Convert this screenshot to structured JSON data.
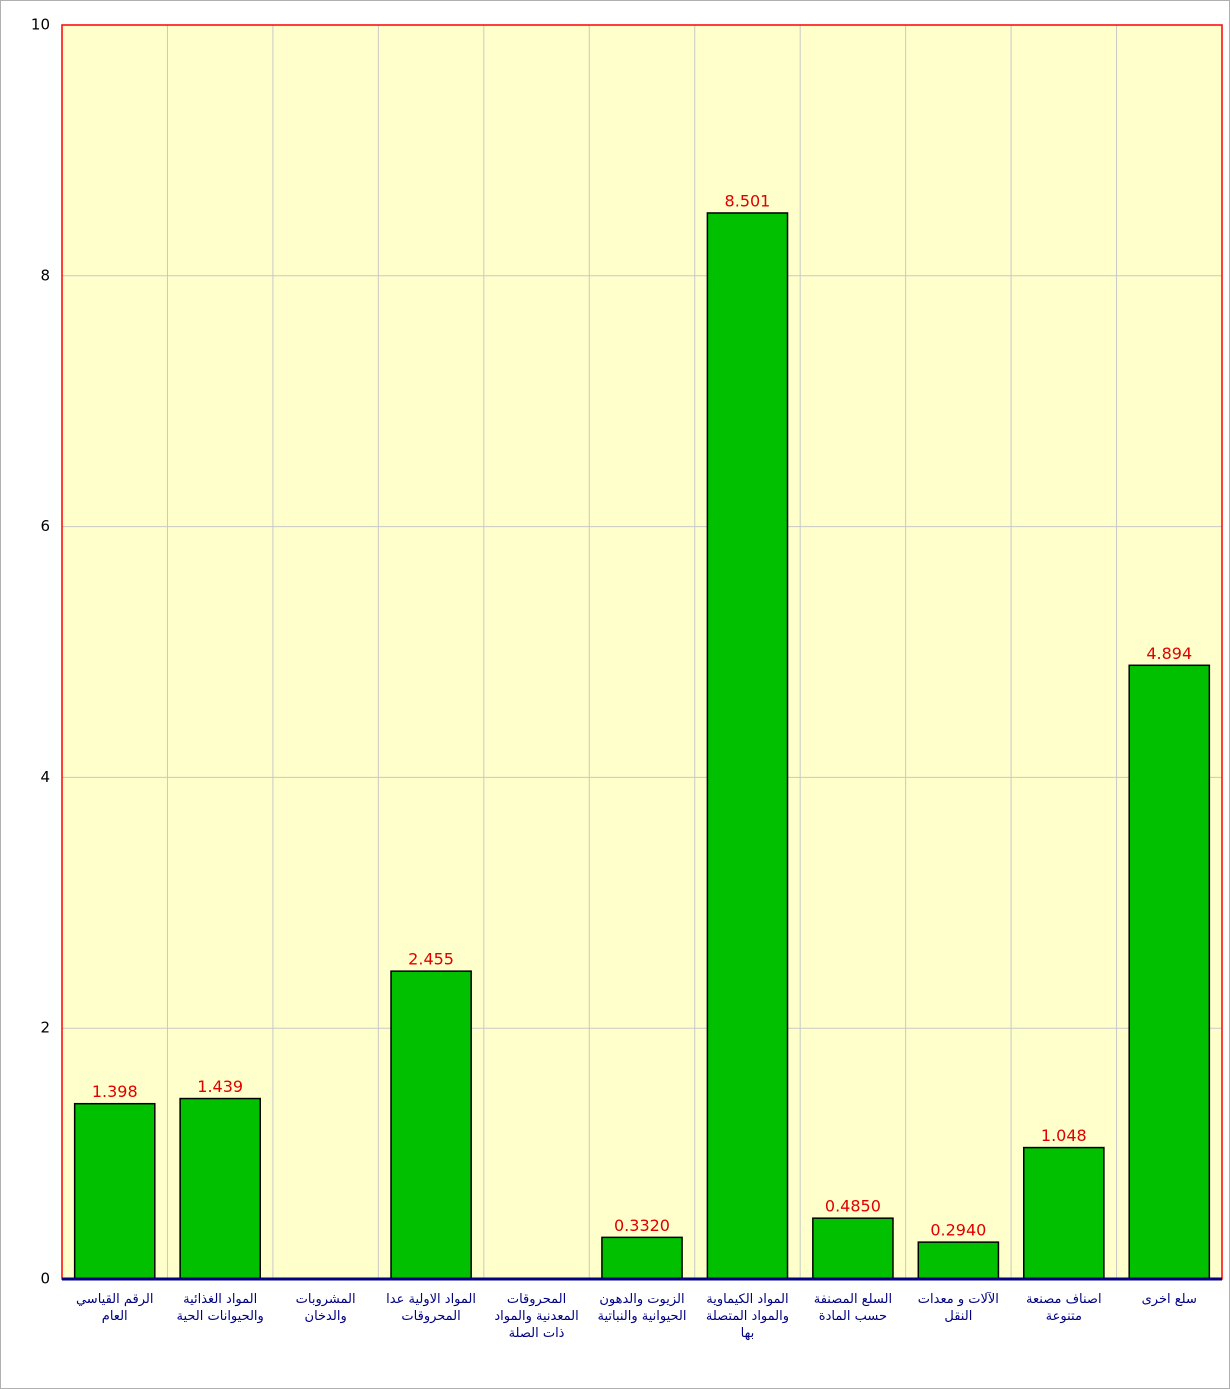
{
  "chart_data": {
    "type": "bar",
    "categories": [
      "الرقم القياسي العام",
      "المواد الغذائية والحيوانات الحية",
      "المشروبات والدخان",
      "المواد الاولية عدا المحروقات",
      "المحروقات المعدنية والمواد ذات الصلة",
      "الزيوت والدهون الحيوانية والنباتية",
      "المواد الكيماوية والمواد المتصلة بها",
      "السلع المصنفة حسب المادة",
      "الآلات و معدات النقل",
      "اصناف مصنعة متنوعة",
      "سلع اخرى"
    ],
    "values": [
      1.398,
      1.439,
      null,
      2.455,
      null,
      0.332,
      8.501,
      0.485,
      0.294,
      1.048,
      4.894
    ],
    "value_labels": [
      "1.398",
      "1.439",
      null,
      "2.455",
      null,
      "0.3320",
      "8.501",
      "0.4850",
      "0.2940",
      "1.048",
      "4.894"
    ],
    "color": "#00c000",
    "ylim": [
      0,
      10
    ],
    "yticks": [
      0,
      2,
      4,
      6,
      8,
      10
    ],
    "grid": true
  }
}
